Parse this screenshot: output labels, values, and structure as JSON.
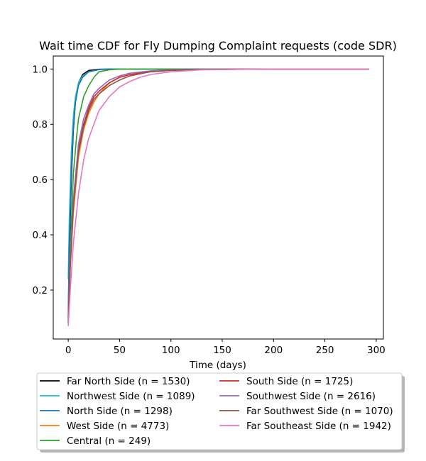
{
  "chart_data": {
    "type": "line",
    "title": "Wait time CDF for Fly Dumping Complaint  requests (code SDR)",
    "xlabel": "Time (days)",
    "ylabel": "",
    "xlim": [
      -14.6,
      307
    ],
    "ylim": [
      0.023,
      1.047
    ],
    "xticks": [
      0,
      50,
      100,
      150,
      200,
      250,
      300
    ],
    "yticks": [
      0.2,
      0.4,
      0.6,
      0.8,
      1.0
    ],
    "xtick_labels": [
      "0",
      "50",
      "100",
      "150",
      "200",
      "250",
      "300"
    ],
    "ytick_labels": [
      "0.2",
      "0.4",
      "0.6",
      "0.8",
      "1.0"
    ],
    "grid": false,
    "legend_placement": "below-plot",
    "legend_columns": 2,
    "series": [
      {
        "name": "Far North Side (n = 1530)",
        "color": "#000000",
        "x": [
          0,
          1,
          3,
          5,
          7,
          10,
          14,
          20,
          30,
          45,
          60,
          90,
          130,
          200,
          293
        ],
        "y": [
          0.08,
          0.32,
          0.6,
          0.78,
          0.88,
          0.95,
          0.98,
          0.995,
          0.999,
          1.0,
          1.0,
          1.0,
          1.0,
          1.0,
          1.0
        ]
      },
      {
        "name": "Northwest Side (n = 1089)",
        "color": "#17becf",
        "x": [
          0,
          1,
          3,
          5,
          7,
          10,
          14,
          20,
          30,
          45,
          60,
          90,
          130,
          200,
          293
        ],
        "y": [
          0.24,
          0.45,
          0.7,
          0.83,
          0.9,
          0.95,
          0.975,
          0.99,
          0.998,
          1.0,
          1.0,
          1.0,
          1.0,
          1.0,
          1.0
        ]
      },
      {
        "name": "North Side (n = 1298)",
        "color": "#1f77b4",
        "x": [
          0,
          1,
          3,
          5,
          7,
          10,
          14,
          20,
          30,
          45,
          60,
          90,
          130,
          200,
          293
        ],
        "y": [
          0.13,
          0.36,
          0.63,
          0.79,
          0.88,
          0.94,
          0.97,
          0.99,
          0.998,
          1.0,
          1.0,
          1.0,
          1.0,
          1.0,
          1.0
        ]
      },
      {
        "name": "West Side (n = 4773)",
        "color": "#ff7f0e",
        "x": [
          0,
          2,
          5,
          10,
          15,
          20,
          25,
          30,
          40,
          50,
          60,
          80,
          100,
          130,
          200,
          293
        ],
        "y": [
          0.1,
          0.28,
          0.48,
          0.68,
          0.78,
          0.84,
          0.88,
          0.91,
          0.95,
          0.97,
          0.98,
          0.99,
          0.995,
          0.998,
          1.0,
          1.0
        ]
      },
      {
        "name": "Central (n = 249)",
        "color": "#2ca02c",
        "x": [
          0,
          2,
          5,
          8,
          10,
          15,
          20,
          25,
          30,
          40,
          50,
          100,
          200,
          293
        ],
        "y": [
          0.08,
          0.35,
          0.62,
          0.75,
          0.82,
          0.9,
          0.94,
          0.97,
          0.99,
          0.997,
          1.0,
          1.0,
          1.0,
          1.0
        ]
      },
      {
        "name": "South Side (n = 1725)",
        "color": "#d62728",
        "x": [
          0,
          2,
          5,
          10,
          15,
          20,
          25,
          30,
          40,
          50,
          60,
          80,
          100,
          130,
          200,
          293
        ],
        "y": [
          0.11,
          0.3,
          0.51,
          0.71,
          0.8,
          0.86,
          0.9,
          0.92,
          0.95,
          0.97,
          0.98,
          0.99,
          0.995,
          0.998,
          1.0,
          1.0
        ]
      },
      {
        "name": "Southwest Side (n = 2616)",
        "color": "#9467bd",
        "x": [
          0,
          2,
          5,
          10,
          15,
          20,
          25,
          30,
          40,
          50,
          60,
          80,
          100,
          130,
          200,
          293
        ],
        "y": [
          0.12,
          0.32,
          0.53,
          0.73,
          0.82,
          0.87,
          0.91,
          0.93,
          0.96,
          0.975,
          0.985,
          0.993,
          0.997,
          0.999,
          1.0,
          1.0
        ]
      },
      {
        "name": "Far Southwest Side (n = 1070)",
        "color": "#8c564b",
        "x": [
          0,
          2,
          5,
          10,
          15,
          20,
          25,
          30,
          40,
          50,
          60,
          80,
          100,
          130,
          200,
          293
        ],
        "y": [
          0.1,
          0.29,
          0.5,
          0.7,
          0.79,
          0.85,
          0.89,
          0.91,
          0.94,
          0.96,
          0.975,
          0.99,
          0.995,
          0.998,
          1.0,
          1.0
        ]
      },
      {
        "name": "Far Southeast Side (n = 1942)",
        "color": "#e377c2",
        "x": [
          0,
          2,
          5,
          10,
          15,
          20,
          30,
          40,
          50,
          60,
          70,
          80,
          100,
          130,
          200,
          293
        ],
        "y": [
          0.07,
          0.2,
          0.37,
          0.55,
          0.67,
          0.75,
          0.85,
          0.9,
          0.935,
          0.955,
          0.97,
          0.98,
          0.99,
          0.997,
          1.0,
          1.0
        ]
      }
    ]
  }
}
